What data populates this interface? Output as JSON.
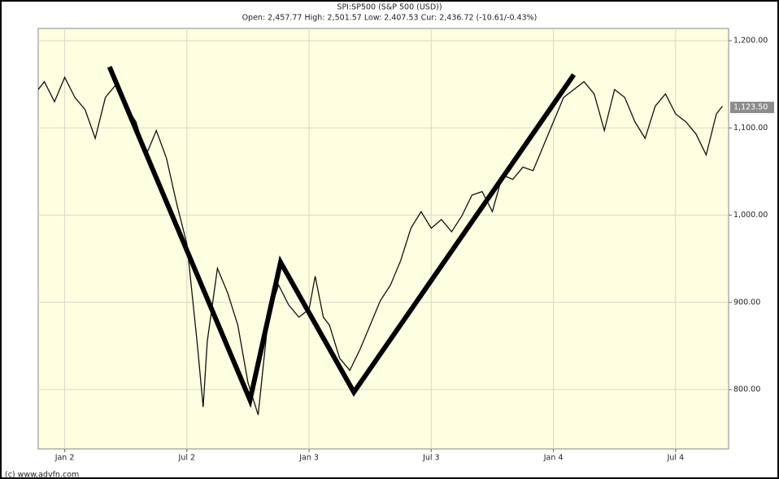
{
  "chart_data": {
    "type": "line",
    "title": "SPI:SP500 (S&P 500 (USD))",
    "subtitle": "Open: 2,457.77 High: 2,501.57 Low: 2,407.53 Cur: 2,436.72 (-10.61/-0.43%)",
    "footer": "(c) www.advfn.com",
    "color": "#111111",
    "background": "#fefee0",
    "grid": true,
    "x": [
      -1.3,
      -1,
      -0.5,
      0,
      0.5,
      1,
      1.5,
      2,
      2.5,
      3,
      3.5,
      4,
      4.5,
      5,
      5.5,
      6,
      6.5,
      6.8,
      7,
      7.5,
      8,
      8.5,
      9,
      9.5,
      10,
      10.5,
      11,
      11.5,
      12,
      12.3,
      12.7,
      13,
      13.5,
      14,
      14.5,
      15,
      15.5,
      16,
      16.5,
      17,
      17.5,
      18,
      18.5,
      19,
      19.5,
      20,
      20.5,
      21,
      21.5,
      22,
      22.5,
      23,
      23.5,
      24,
      24.5,
      25,
      25.5,
      26,
      26.5,
      27,
      27.5,
      28,
      28.5,
      29,
      29.5,
      30,
      30.5,
      31,
      31.5,
      32,
      32.3
    ],
    "values": [
      1144,
      1153,
      1130,
      1158,
      1135,
      1121,
      1088,
      1135,
      1149,
      1125,
      1107,
      1069,
      1097,
      1065,
      1013,
      967,
      855,
      780,
      855,
      939,
      911,
      874,
      808,
      771,
      883,
      920,
      897,
      883,
      892,
      930,
      883,
      874,
      836,
      822,
      846,
      874,
      902,
      920,
      948,
      985,
      1004,
      985,
      995,
      981,
      999,
      1023,
      1027,
      1004,
      1046,
      1041,
      1055,
      1051,
      1079,
      1107,
      1135,
      1144,
      1153,
      1139,
      1097,
      1144,
      1135,
      1107,
      1088,
      1125,
      1139,
      1116,
      1107,
      1093,
      1069,
      1116,
      1125
    ],
    "trendline": {
      "color": "#000000",
      "x": [
        2.2,
        9.1,
        10.6,
        14.2,
        25
      ],
      "values": [
        1170,
        788,
        946,
        797,
        1161
      ]
    },
    "last_value": {
      "value": 1123.5,
      "label": "1,123.50"
    },
    "xlim": [
      -1.3,
      32.6
    ],
    "xticks": [
      {
        "value": 0,
        "label": "Jan 2"
      },
      {
        "value": 6,
        "label": "Jul 2"
      },
      {
        "value": 12,
        "label": "Jan 3"
      },
      {
        "value": 18,
        "label": "Jul 3"
      },
      {
        "value": 24,
        "label": "Jan 4"
      },
      {
        "value": 30,
        "label": "Jul 4"
      }
    ],
    "ylim": [
      732,
      1214
    ],
    "yticks": [
      {
        "value": 800,
        "label": "800.00"
      },
      {
        "value": 900,
        "label": "900.00"
      },
      {
        "value": 1000,
        "label": "1,000.00"
      },
      {
        "value": 1100,
        "label": "1,100.00"
      },
      {
        "value": 1200,
        "label": "1,200.00"
      }
    ]
  }
}
